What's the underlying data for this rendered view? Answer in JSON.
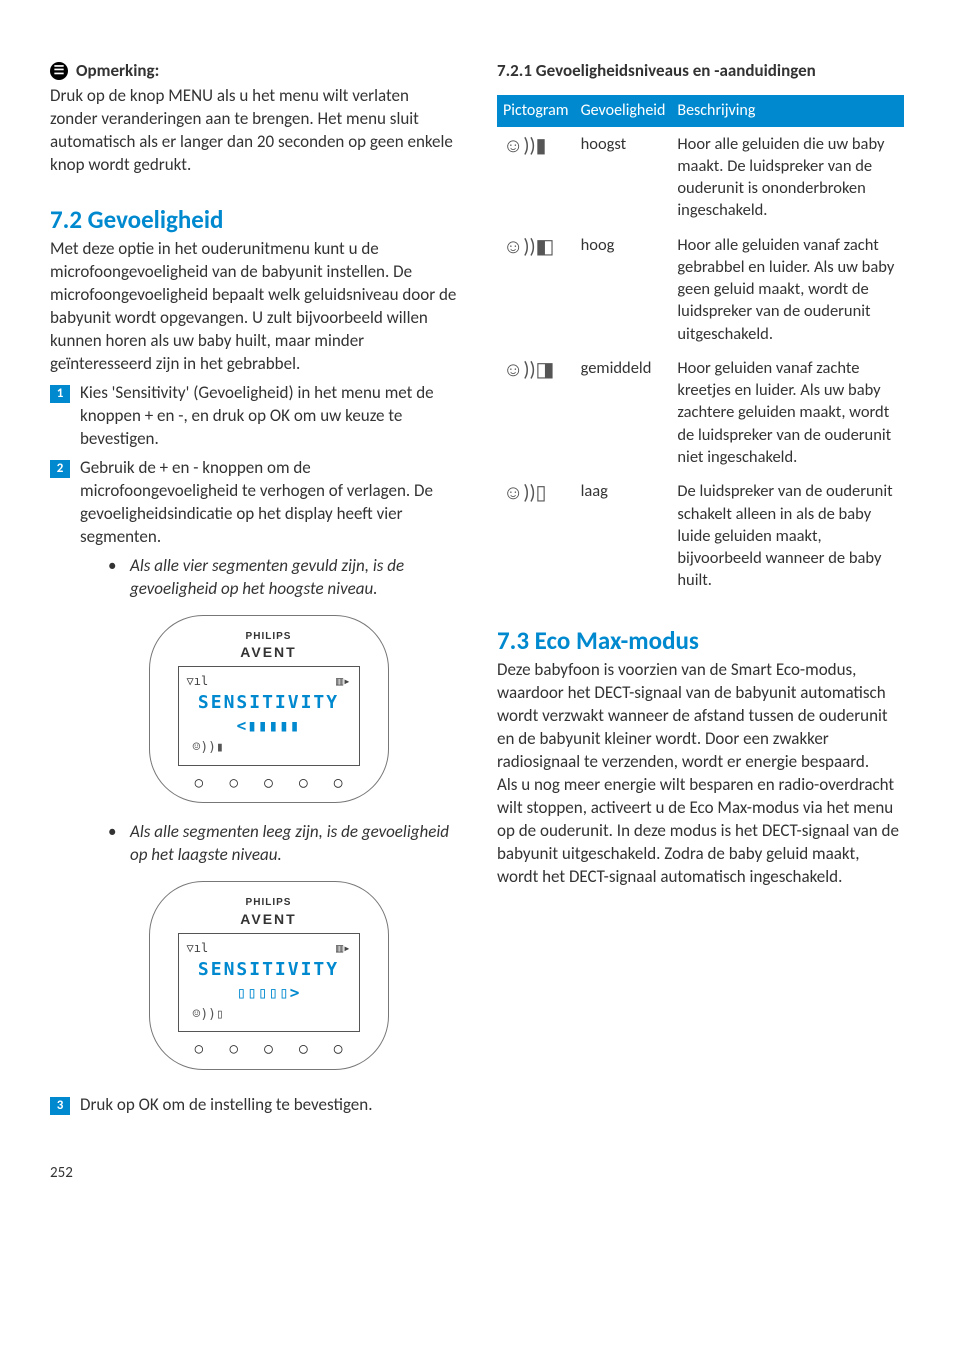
{
  "left": {
    "note_label": "Opmerking:",
    "note_body": "Druk op de knop MENU als u het menu wilt verlaten zonder veranderingen aan te brengen. Het menu sluit automatisch als er langer dan 20 seconden op geen enkele knop wordt gedrukt.",
    "sec72_title": "7.2 Gevoeligheid",
    "sec72_intro": "Met deze optie in het ouderunitmenu kunt u de microfoongevoeligheid van de babyunit instellen. De microfoongevoeligheid bepaalt welk geluidsniveau door de babyunit wordt opgevangen. U zult bijvoorbeeld willen kunnen horen als uw baby huilt, maar minder geïnteresseerd zijn in het gebrabbel.",
    "step1": "Kies 'Sensitivity' (Gevoeligheid) in het menu met de knoppen + en -, en druk op OK om uw keuze te bevestigen.",
    "step2": "Gebruik de + en - knoppen om de microfoongevoeligheid te verhogen of verlagen. De gevoeligheidsindicatie op het display heeft vier segmenten.",
    "bullet_high": "Als alle vier segmenten gevuld zijn, is de gevoeligheid op het hoogste niveau.",
    "bullet_low": "Als alle segmenten leeg zijn, is de gevoeligheid op het laagste niveau.",
    "step3": "Druk op OK om de instelling te bevestigen.",
    "lcd_word": "SENSITIVITY",
    "brand1": "PHILIPS",
    "brand2": "AVENT"
  },
  "right": {
    "sec721_title": "7.2.1 Gevoeligheidsniveaus en -aanduidingen",
    "th1": "Pictogram",
    "th2": "Gevoeligheid",
    "th3": "Beschrijving",
    "rows": [
      {
        "level": "hoogst",
        "desc": "Hoor alle geluiden die uw baby maakt. De luidspreker van de ouderunit is ononderbroken ingeschakeld."
      },
      {
        "level": "hoog",
        "desc": "Hoor alle geluiden vanaf zacht gebrabbel en luider. Als uw baby geen geluid maakt, wordt de luidspreker van de ouderunit uitgeschakeld."
      },
      {
        "level": "gemiddeld",
        "desc": "Hoor geluiden vanaf zachte kreetjes en luider. Als uw baby zachtere geluiden maakt, wordt de luidspreker van de ouderunit niet ingeschakeld."
      },
      {
        "level": "laag",
        "desc": "De luidspreker van de ouderunit schakelt alleen in als de baby luide geluiden maakt, bijvoorbeeld wanneer de baby huilt."
      }
    ],
    "sec73_title": "7.3 Eco Max-modus",
    "sec73_p1": "Deze babyfoon is voorzien van de Smart Eco-modus, waardoor het DECT-signaal van de babyunit automatisch wordt verzwakt wanneer de afstand tussen de ouderunit en de babyunit kleiner wordt. Door een zwakker radiosignaal te verzenden, wordt er energie bespaard.",
    "sec73_p2": "Als u nog meer energie wilt besparen en radio-overdracht wilt stoppen, activeert u de Eco Max-modus via het menu op de ouderunit. In deze modus is het DECT-signaal van de babyunit uitgeschakeld. Zodra de baby geluid maakt, wordt het DECT-signaal automatisch ingeschakeld."
  },
  "page_number": "252"
}
